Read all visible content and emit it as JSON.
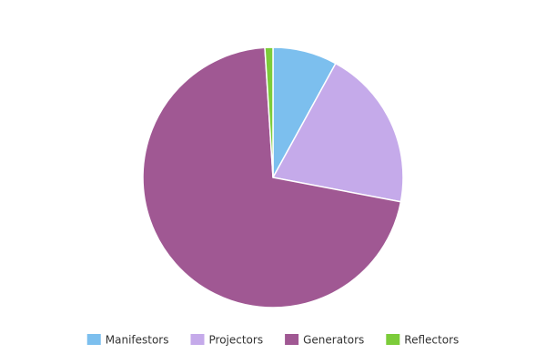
{
  "chart_data": {
    "type": "pie",
    "categories": [
      "Manifestors",
      "Projectors",
      "Generators",
      "Reflectors"
    ],
    "values": [
      8,
      20,
      71,
      1
    ],
    "colors": [
      "#7cbfee",
      "#c5aaea",
      "#a05893",
      "#7ccc3a"
    ],
    "legend": "bottom"
  }
}
